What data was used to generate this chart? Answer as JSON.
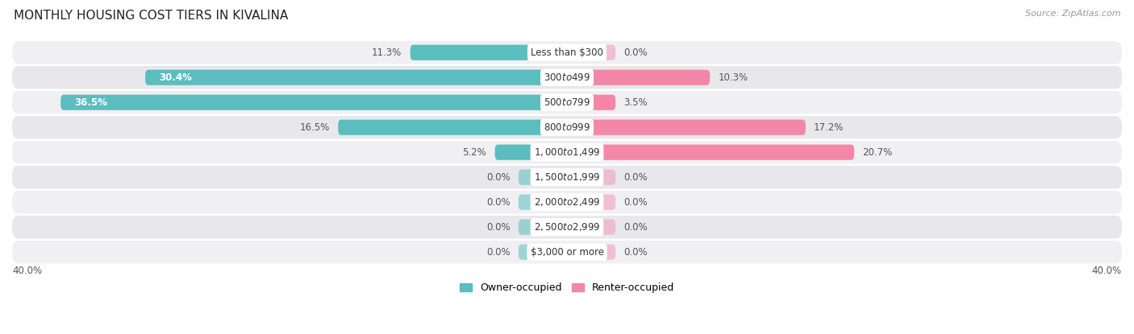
{
  "title": "MONTHLY HOUSING COST TIERS IN KIVALINA",
  "source": "Source: ZipAtlas.com",
  "categories": [
    "Less than $300",
    "$300 to $499",
    "$500 to $799",
    "$800 to $999",
    "$1,000 to $1,499",
    "$1,500 to $1,999",
    "$2,000 to $2,499",
    "$2,500 to $2,999",
    "$3,000 or more"
  ],
  "owner_values": [
    11.3,
    30.4,
    36.5,
    16.5,
    5.2,
    0.0,
    0.0,
    0.0,
    0.0
  ],
  "renter_values": [
    0.0,
    10.3,
    3.5,
    17.2,
    20.7,
    0.0,
    0.0,
    0.0,
    0.0
  ],
  "owner_color": "#5bbdbe",
  "renter_color": "#f487a8",
  "row_colors": [
    "#f0f0f2",
    "#e8e8ec"
  ],
  "x_max": 40.0,
  "x_min": -40.0,
  "bar_height": 0.62,
  "zero_stub": 3.5,
  "label_fontsize": 8.5,
  "title_fontsize": 11,
  "category_fontsize": 8.5,
  "legend_fontsize": 9,
  "value_fontsize": 8.5
}
